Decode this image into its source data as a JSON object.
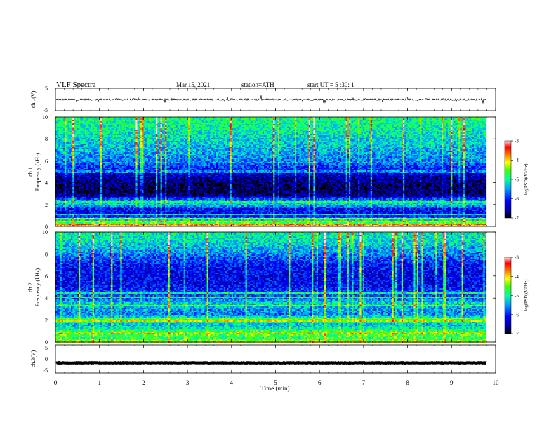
{
  "header": {
    "title": "VLF Spectra",
    "date": "Mar.15, 2021",
    "station": "station=ATH",
    "start_ut": "start UT =  5 :30: 1"
  },
  "chart_data": [
    {
      "id": "ch1",
      "type": "line",
      "ylabel": "ch.1(V)",
      "ylim": [
        -5,
        5
      ],
      "yticks": [
        "5",
        "-5"
      ],
      "xlim": [
        0,
        10
      ],
      "baseline": 0,
      "noise_amplitude": 0.4,
      "spike_amplitude": 1.6
    },
    {
      "id": "ch1-spec",
      "type": "heatmap",
      "ylabel_line1": "ch.1",
      "ylabel_line2": "Frequency (kHz)",
      "ylim": [
        0,
        10
      ],
      "yticks": [
        "0",
        "2",
        "4",
        "6",
        "8",
        "10"
      ],
      "xlim": [
        0,
        10
      ],
      "data_end_min": 9.8,
      "colorbar": {
        "label": "log(PSD)(V²/Hz)",
        "range": [
          -7,
          -3
        ],
        "ticks": [
          "-3",
          "-4",
          "-5",
          "-6",
          "-7"
        ]
      },
      "profile_khz": [
        0,
        0.3,
        0.6,
        0.9,
        1.2,
        1.6,
        2.0,
        2.3,
        2.8,
        3.3,
        4.0,
        4.7,
        5.3,
        6.0,
        7.0,
        8.0,
        9.0,
        10.0
      ],
      "profile_log_psd": [
        -3.8,
        -4.6,
        -5.2,
        -6.0,
        -6.2,
        -6.1,
        -5.2,
        -5.4,
        -6.6,
        -6.8,
        -6.7,
        -6.4,
        -6.0,
        -5.6,
        -5.4,
        -5.2,
        -5.0,
        -4.9
      ],
      "lines_khz": [
        0.15,
        0.45,
        0.7,
        1.05,
        2.25,
        5.0,
        5.8
      ],
      "lines_log_psd": [
        -3.5,
        -4.2,
        -4.5,
        -5.1,
        -4.9,
        -5.6,
        -5.5
      ]
    },
    {
      "id": "ch2-spec",
      "type": "heatmap",
      "ylabel_line1": "ch.2",
      "ylabel_line2": "Frequency (kHz)",
      "ylim": [
        0,
        10
      ],
      "yticks": [
        "0",
        "2",
        "4",
        "6",
        "8",
        "10"
      ],
      "xlim": [
        0,
        10
      ],
      "data_end_min": 9.8,
      "colorbar": {
        "label": "log(PSD)(V²/Hz)",
        "range": [
          -7,
          -3
        ],
        "ticks": [
          "-3",
          "-4",
          "-5",
          "-6",
          "-7"
        ]
      },
      "profile_khz": [
        0,
        0.4,
        0.8,
        1.2,
        1.6,
        2.0,
        2.5,
        3.0,
        3.5,
        4.0,
        4.6,
        5.2,
        6.0,
        7.0,
        8.0,
        9.0,
        10.0
      ],
      "profile_log_psd": [
        -4.3,
        -4.8,
        -4.5,
        -5.0,
        -5.4,
        -4.6,
        -5.6,
        -5.5,
        -5.2,
        -5.7,
        -5.9,
        -6.2,
        -6.2,
        -6.1,
        -5.6,
        -5.2,
        -5.0
      ],
      "lines_khz": [
        0.8,
        1.95,
        2.15,
        3.3,
        4.1,
        4.5
      ],
      "lines_log_psd": [
        -4.1,
        -4.2,
        -4.5,
        -4.7,
        -4.9,
        -5.0
      ]
    },
    {
      "id": "ch3",
      "type": "line",
      "ylabel": "ch.3(V)",
      "ylim": [
        -5,
        5
      ],
      "yticks": [
        "5",
        "0",
        "-5"
      ],
      "xlim": [
        0,
        10
      ],
      "baseline": -1.4,
      "noise_amplitude": 0.1,
      "spike_amplitude": 0
    }
  ],
  "xaxis": {
    "label": "Time (min)",
    "ticks": [
      "0",
      "1",
      "2",
      "3",
      "4",
      "5",
      "6",
      "7",
      "8",
      "9",
      "10"
    ],
    "range": [
      0,
      10
    ]
  }
}
